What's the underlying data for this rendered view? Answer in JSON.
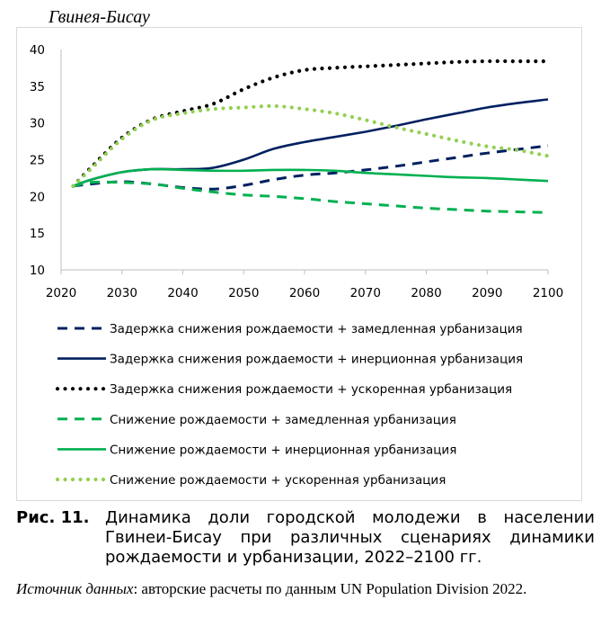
{
  "chart_data": {
    "type": "line",
    "title": "Гвинея-Бисау",
    "xlabel": "",
    "ylabel": "",
    "xlim": [
      2020,
      2100
    ],
    "ylim": [
      10,
      40
    ],
    "x_ticks": [
      "2020",
      "2030",
      "2040",
      "2050",
      "2060",
      "2070",
      "2080",
      "2090",
      "2100"
    ],
    "y_ticks": [
      "10",
      "15",
      "20",
      "25",
      "30",
      "35",
      "40"
    ],
    "grid": false,
    "legend_position": "bottom",
    "x": [
      2022,
      2025,
      2030,
      2035,
      2040,
      2045,
      2050,
      2055,
      2060,
      2065,
      2070,
      2075,
      2080,
      2085,
      2090,
      2095,
      2100
    ],
    "series": [
      {
        "name": "Задержка снижения рождаемости + замедленная урбанизация",
        "color": "#002060",
        "dash": "dashed",
        "values": [
          21.4,
          21.7,
          22.0,
          21.7,
          21.2,
          21.0,
          21.5,
          22.3,
          22.9,
          23.2,
          23.6,
          24.1,
          24.7,
          25.3,
          25.9,
          26.4,
          26.9
        ]
      },
      {
        "name": "Задержка снижения рождаемости + инерционная урбанизация",
        "color": "#002060",
        "dash": "solid",
        "values": [
          21.4,
          22.3,
          23.3,
          23.7,
          23.7,
          23.9,
          25.0,
          26.5,
          27.4,
          28.1,
          28.8,
          29.6,
          30.5,
          31.3,
          32.1,
          32.7,
          33.2
        ]
      },
      {
        "name": "Задержка снижения рождаемости + ускоренная урбанизация",
        "color": "#000000",
        "dash": "dotted",
        "values": [
          21.4,
          24.0,
          28.0,
          30.5,
          31.6,
          32.6,
          34.6,
          36.2,
          37.2,
          37.5,
          37.7,
          37.9,
          38.1,
          38.3,
          38.4,
          38.4,
          38.4
        ]
      },
      {
        "name": "Снижение рождаемости + замедленная урбанизация",
        "color": "#00b050",
        "dash": "dashed",
        "values": [
          21.4,
          21.9,
          21.9,
          21.7,
          21.1,
          20.6,
          20.2,
          20.0,
          19.7,
          19.3,
          19.0,
          18.7,
          18.4,
          18.2,
          18.0,
          17.9,
          17.8
        ]
      },
      {
        "name": "Снижение рождаемости + инерционная урбанизация",
        "color": "#00b050",
        "dash": "solid",
        "values": [
          21.4,
          22.3,
          23.3,
          23.7,
          23.6,
          23.5,
          23.5,
          23.6,
          23.6,
          23.5,
          23.2,
          23.0,
          22.8,
          22.6,
          22.5,
          22.3,
          22.1
        ]
      },
      {
        "name": "Снижение рождаемости + ускоренная урбанизация",
        "color": "#92d050",
        "dash": "dotted",
        "values": [
          21.4,
          23.8,
          27.8,
          30.4,
          31.3,
          31.9,
          32.1,
          32.3,
          31.9,
          31.3,
          30.4,
          29.4,
          28.5,
          27.6,
          26.8,
          26.3,
          25.5
        ]
      }
    ]
  },
  "caption": {
    "label": "Рис. 11.",
    "text": "Динамика доли городской молодежи в населении Гвинеи-Бисау при различных сценариях динамики рождаемости и урбанизации, 2022–2100 гг."
  },
  "source": {
    "label": "Источник данных",
    "text": ": авторские расчеты по данным UN Population Division 2022."
  }
}
